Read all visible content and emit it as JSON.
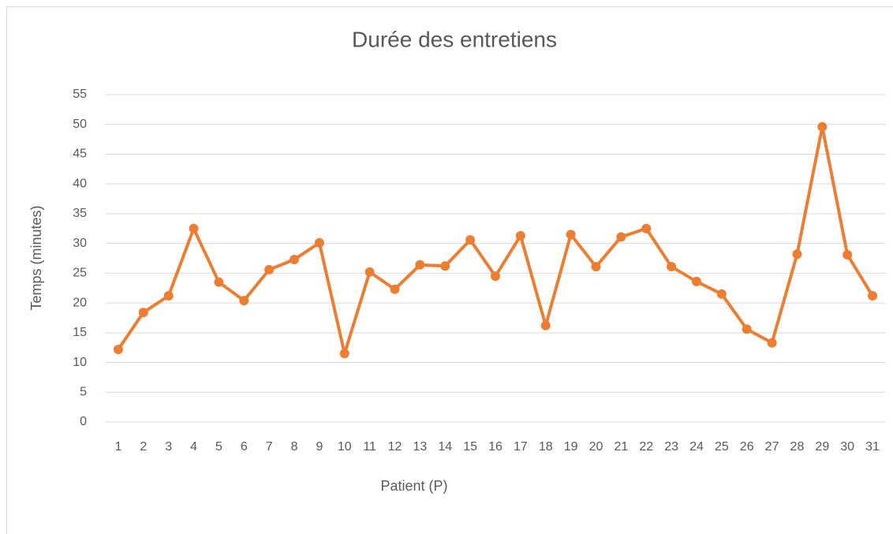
{
  "chart_data": {
    "type": "line",
    "title": "Durée des entretiens",
    "x_label": "Patient (P)",
    "y_label": "Temps (minutes)",
    "categories": [
      "1",
      "2",
      "3",
      "4",
      "5",
      "6",
      "7",
      "8",
      "9",
      "10",
      "11",
      "12",
      "13",
      "14",
      "15",
      "16",
      "17",
      "18",
      "19",
      "20",
      "21",
      "22",
      "23",
      "24",
      "25",
      "26",
      "27",
      "28",
      "29",
      "30",
      "31"
    ],
    "series": [
      {
        "name": "Temps",
        "color": "#ed7d31",
        "values": [
          12.2,
          18.4,
          21.2,
          32.5,
          23.5,
          20.4,
          25.6,
          27.3,
          30.1,
          11.5,
          25.2,
          22.3,
          26.4,
          26.2,
          30.6,
          24.5,
          31.3,
          16.2,
          31.5,
          26.1,
          31.1,
          32.5,
          26.1,
          23.6,
          21.5,
          15.6,
          13.3,
          28.2,
          49.6,
          28.1,
          21.2
        ]
      }
    ],
    "ylim": [
      0,
      55
    ],
    "yticks": [
      0,
      5,
      10,
      15,
      20,
      25,
      30,
      35,
      40,
      45,
      50,
      55
    ],
    "grid": true
  }
}
